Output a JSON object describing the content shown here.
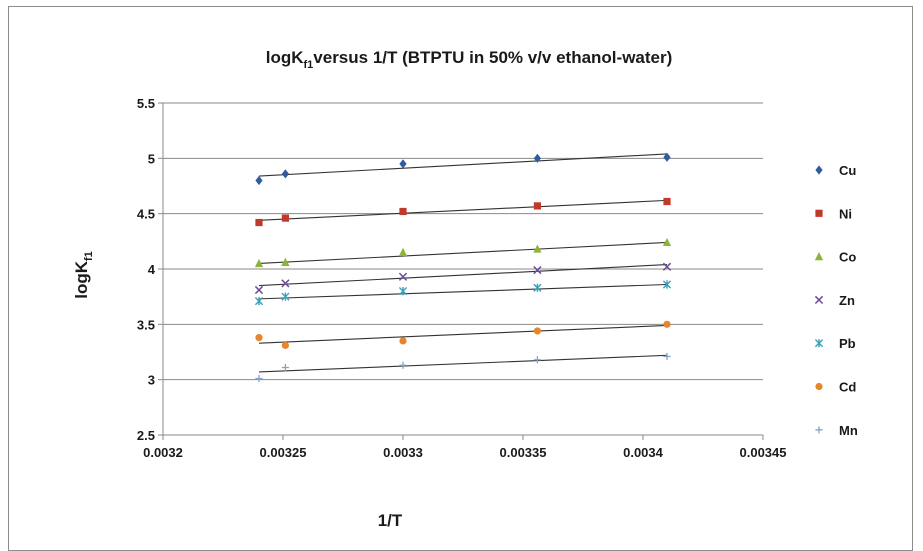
{
  "chart_data": {
    "type": "scatter",
    "title": {
      "main": "logK",
      "sub": "f1",
      "rest": "versus 1/T (BTPTU in 50% v/v ethanol-water)"
    },
    "xlabel": "1/T",
    "ylabel": {
      "main": "logK",
      "sub": "f1"
    },
    "xlim": [
      0.0032,
      0.00345
    ],
    "ylim": [
      2.5,
      5.5
    ],
    "xticks": [
      "0.0032",
      "0.00325",
      "0.0033",
      "0.00335",
      "0.0034",
      "0.00345"
    ],
    "yticks": [
      "2.5",
      "3",
      "3.5",
      "4",
      "4.5",
      "5",
      "5.5"
    ],
    "grid": "horizontal",
    "legend": "right",
    "trendlines": true,
    "x": [
      0.00324,
      0.003251,
      0.0033,
      0.003356,
      0.00341
    ],
    "series": [
      {
        "name": "Cu",
        "marker": "diamond",
        "color": "#2f5c9e",
        "values": [
          4.8,
          4.86,
          4.95,
          5.0,
          5.01
        ],
        "fit": [
          4.84,
          5.04
        ]
      },
      {
        "name": "Ni",
        "marker": "square",
        "color": "#c0392b",
        "values": [
          4.42,
          4.46,
          4.52,
          4.57,
          4.61
        ],
        "fit": [
          4.44,
          4.62
        ]
      },
      {
        "name": "Co",
        "marker": "triangle",
        "color": "#8fb339",
        "values": [
          4.05,
          4.06,
          4.15,
          4.18,
          4.24
        ],
        "fit": [
          4.05,
          4.24
        ]
      },
      {
        "name": "Zn",
        "marker": "x",
        "color": "#6a4a9a",
        "values": [
          3.81,
          3.87,
          3.93,
          3.99,
          4.02
        ],
        "fit": [
          3.85,
          4.04
        ]
      },
      {
        "name": "Pb",
        "marker": "star",
        "color": "#3aa0b8",
        "values": [
          3.71,
          3.75,
          3.8,
          3.83,
          3.86
        ],
        "fit": [
          3.73,
          3.86
        ]
      },
      {
        "name": "Cd",
        "marker": "circle",
        "color": "#e8842c",
        "values": [
          3.38,
          3.31,
          3.35,
          3.44,
          3.5
        ],
        "fit": [
          3.33,
          3.49
        ]
      },
      {
        "name": "Mn",
        "marker": "plus",
        "color": "#86a4cc",
        "values": [
          3.01,
          3.11,
          3.13,
          3.18,
          3.21
        ],
        "fit": [
          3.07,
          3.22
        ]
      }
    ]
  }
}
